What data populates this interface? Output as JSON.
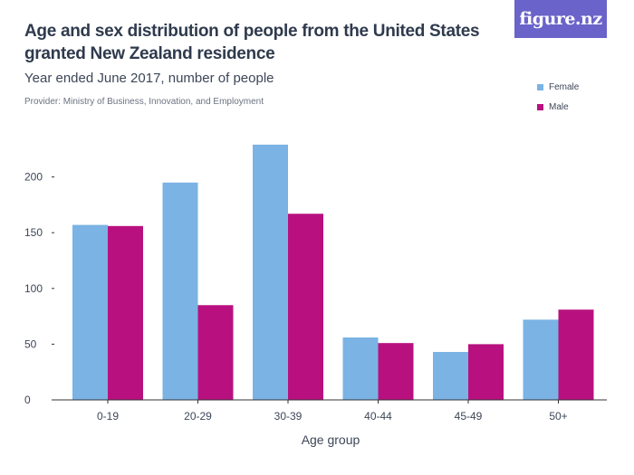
{
  "header": {
    "title": "Age and sex distribution of people from the United States granted New Zealand residence",
    "subtitle": "Year ended June 2017, number of people",
    "provider": "Provider: Ministry of Business, Innovation, and Employment"
  },
  "logo": {
    "text": "figure.nz"
  },
  "colors": {
    "female": "#7ab3e4",
    "male": "#b8117f",
    "logo_bg": "#6a63c9"
  },
  "chart_data": {
    "type": "bar",
    "title": "Age and sex distribution of people from the United States granted New Zealand residence",
    "subtitle": "Year ended June 2017, number of people",
    "xlabel": "Age group",
    "ylabel": "",
    "ylim": [
      0,
      230
    ],
    "yticks": [
      0,
      50,
      100,
      150,
      200
    ],
    "grid": false,
    "legend_position": "top-right",
    "categories": [
      "0-19",
      "20-29",
      "30-39",
      "40-44",
      "45-49",
      "50+"
    ],
    "series": [
      {
        "name": "Female",
        "values": [
          157,
          195,
          229,
          56,
          43,
          72
        ]
      },
      {
        "name": "Male",
        "values": [
          156,
          85,
          167,
          51,
          50,
          81
        ]
      }
    ]
  }
}
